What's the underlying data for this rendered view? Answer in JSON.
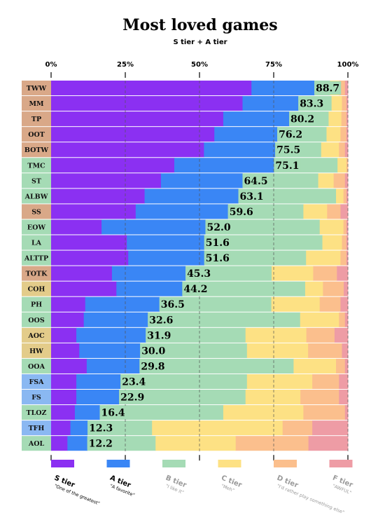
{
  "chart_data": {
    "type": "stacked-bar-horizontal",
    "title": "Most loved games",
    "subtitle": "S tier + A tier",
    "x_ticks": [
      "0%",
      "25%",
      "50%",
      "75%",
      "100%"
    ],
    "xlim": [
      0,
      100
    ],
    "grid": true,
    "legend_position": "bottom",
    "tiers": [
      {
        "key": "S",
        "name": "S tier",
        "desc": "\"One of the greatest\"",
        "color": "#8b30f2",
        "text_color": "#000000"
      },
      {
        "key": "A",
        "name": "A tier",
        "desc": "\"A favorite\"",
        "color": "#3a86f5",
        "text_color": "#000000"
      },
      {
        "key": "B",
        "name": "B tier",
        "desc": "\"I like it\"",
        "color": "#a5dbb5",
        "text_color": "#9a9a9a"
      },
      {
        "key": "C",
        "name": "C tier",
        "desc": "\"Meh\"",
        "color": "#fde184",
        "text_color": "#9a9a9a"
      },
      {
        "key": "D",
        "name": "D tier",
        "desc": "\"I'd rather play something else\"",
        "color": "#fbbf8d",
        "text_color": "#9a9a9a"
      },
      {
        "key": "F",
        "name": "F tier",
        "desc": "\"AWFUL\"",
        "color": "#ee9ca5",
        "text_color": "#9a9a9a"
      }
    ],
    "games": [
      {
        "label": "TWW",
        "tag": "#d9a888",
        "total": "88.7",
        "values": [
          67.5,
          21.2,
          5.3,
          3.0,
          2.0,
          1.0
        ]
      },
      {
        "label": "MM",
        "tag": "#d9a888",
        "total": "83.3",
        "values": [
          64.5,
          18.8,
          11.2,
          3.5,
          1.5,
          0.5
        ]
      },
      {
        "label": "TP",
        "tag": "#d9a888",
        "total": "80.2",
        "values": [
          58.0,
          22.2,
          13.3,
          4.3,
          1.7,
          0.5
        ]
      },
      {
        "label": "OOT",
        "tag": "#d9a888",
        "total": "76.2",
        "values": [
          55.0,
          21.2,
          16.6,
          4.7,
          2.0,
          0.5
        ]
      },
      {
        "label": "BOTW",
        "tag": "#d9a888",
        "total": "75.5",
        "values": [
          51.5,
          24.0,
          15.5,
          6.0,
          2.0,
          1.0
        ]
      },
      {
        "label": "TMC",
        "tag": "#a5dbb5",
        "total": "75.1",
        "values": [
          41.5,
          33.6,
          21.4,
          3.0,
          0.5,
          0.0
        ]
      },
      {
        "label": "ST",
        "tag": "#a5dbb5",
        "total": "64.5",
        "values": [
          37.0,
          27.5,
          25.5,
          5.2,
          3.8,
          1.0
        ]
      },
      {
        "label": "ALBW",
        "tag": "#a5dbb5",
        "total": "63.1",
        "values": [
          31.5,
          31.6,
          32.9,
          2.5,
          1.0,
          0.5
        ]
      },
      {
        "label": "SS",
        "tag": "#d9a888",
        "total": "59.6",
        "values": [
          28.5,
          31.1,
          25.4,
          8.0,
          4.5,
          2.5
        ]
      },
      {
        "label": "EOW",
        "tag": "#a5dbb5",
        "total": "52.0",
        "values": [
          17.0,
          35.0,
          38.5,
          8.0,
          1.0,
          0.5
        ]
      },
      {
        "label": "LA",
        "tag": "#a5dbb5",
        "total": "51.6",
        "values": [
          25.5,
          26.1,
          39.8,
          6.6,
          1.5,
          0.5
        ]
      },
      {
        "label": "ALTTP",
        "tag": "#a5dbb5",
        "total": "51.6",
        "values": [
          26.0,
          25.6,
          34.3,
          11.6,
          2.0,
          0.5
        ]
      },
      {
        "label": "TOTK",
        "tag": "#d9a888",
        "total": "45.3",
        "values": [
          20.5,
          24.8,
          29.0,
          14.0,
          8.0,
          3.7
        ]
      },
      {
        "label": "COH",
        "tag": "#e3cc8a",
        "total": "44.2",
        "values": [
          22.0,
          22.2,
          41.4,
          6.0,
          7.0,
          1.4
        ]
      },
      {
        "label": "PH",
        "tag": "#a5dbb5",
        "total": "36.5",
        "values": [
          11.5,
          25.0,
          37.7,
          16.3,
          7.0,
          2.5
        ]
      },
      {
        "label": "OOS",
        "tag": "#a5dbb5",
        "total": "32.6",
        "values": [
          11.0,
          21.6,
          51.3,
          13.1,
          2.0,
          1.0
        ]
      },
      {
        "label": "AOC",
        "tag": "#e3cc8a",
        "total": "31.9",
        "values": [
          8.5,
          23.4,
          33.6,
          20.5,
          9.5,
          4.5
        ]
      },
      {
        "label": "HW",
        "tag": "#e3cc8a",
        "total": "30.0",
        "values": [
          9.5,
          20.5,
          36.0,
          20.6,
          11.4,
          2.0
        ]
      },
      {
        "label": "OOA",
        "tag": "#a5dbb5",
        "total": "29.8",
        "values": [
          12.0,
          17.8,
          51.9,
          14.3,
          3.0,
          1.0
        ]
      },
      {
        "label": "FSA",
        "tag": "#8ab8f2",
        "total": "23.4",
        "values": [
          8.5,
          14.9,
          42.6,
          22.0,
          9.0,
          3.0
        ]
      },
      {
        "label": "FS",
        "tag": "#8ab8f2",
        "total": "22.9",
        "values": [
          8.5,
          14.4,
          42.6,
          18.5,
          13.0,
          3.0
        ]
      },
      {
        "label": "TLOZ",
        "tag": "#a5dbb5",
        "total": "16.4",
        "values": [
          8.0,
          8.4,
          41.6,
          27.0,
          14.0,
          1.0
        ]
      },
      {
        "label": "TFH",
        "tag": "#8ab8f2",
        "total": "12.3",
        "values": [
          6.5,
          5.8,
          21.7,
          44.0,
          10.0,
          12.0
        ]
      },
      {
        "label": "AOL",
        "tag": "#a5dbb5",
        "total": "12.2",
        "values": [
          5.5,
          6.7,
          23.0,
          27.0,
          24.5,
          13.3
        ]
      }
    ]
  }
}
